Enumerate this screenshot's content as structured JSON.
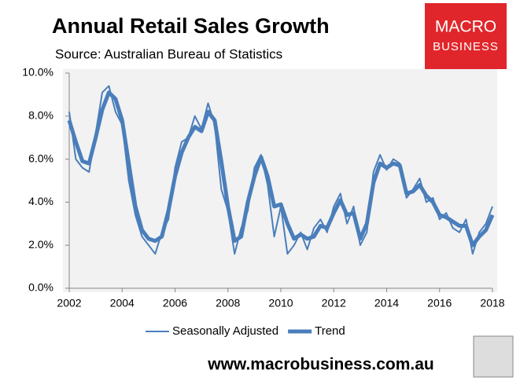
{
  "chart_data": {
    "type": "line",
    "title": "Annual Retail Sales Growth",
    "subtitle": "Source: Australian Bureau of Statistics",
    "logo": [
      "MACRO",
      "BUSINESS"
    ],
    "footer": "www.macrobusiness.com.au",
    "x": [
      2002,
      2002.25,
      2002.5,
      2002.75,
      2003,
      2003.25,
      2003.5,
      2003.75,
      2004,
      2004.25,
      2004.5,
      2004.75,
      2005,
      2005.25,
      2005.5,
      2005.75,
      2006,
      2006.25,
      2006.5,
      2006.75,
      2007,
      2007.25,
      2007.5,
      2007.75,
      2008,
      2008.25,
      2008.5,
      2008.75,
      2009,
      2009.25,
      2009.5,
      2009.75,
      2010,
      2010.25,
      2010.5,
      2010.75,
      2011,
      2011.25,
      2011.5,
      2011.75,
      2012,
      2012.25,
      2012.5,
      2012.75,
      2013,
      2013.25,
      2013.5,
      2013.75,
      2014,
      2014.25,
      2014.5,
      2014.75,
      2015,
      2015.25,
      2015.5,
      2015.75,
      2016,
      2016.25,
      2016.5,
      2016.75,
      2017,
      2017.25,
      2017.5,
      2017.75,
      2018
    ],
    "series": [
      {
        "name": "Seasonally Adjusted",
        "color": "#4a7ebb",
        "width": 2,
        "values": [
          8.2,
          6.0,
          5.6,
          5.4,
          7.2,
          9.1,
          9.4,
          8.2,
          7.6,
          5.0,
          3.4,
          2.4,
          2.0,
          1.6,
          2.6,
          3.2,
          5.6,
          6.8,
          7.0,
          8.0,
          7.4,
          8.6,
          7.6,
          4.6,
          3.6,
          1.6,
          2.8,
          3.6,
          5.6,
          6.2,
          4.8,
          2.4,
          3.8,
          1.6,
          2.0,
          2.6,
          1.8,
          2.8,
          3.2,
          2.6,
          3.8,
          4.4,
          3.0,
          3.8,
          2.0,
          2.6,
          5.4,
          6.2,
          5.5,
          6.0,
          5.8,
          4.2,
          4.6,
          5.1,
          4.0,
          4.2,
          3.2,
          3.5,
          2.8,
          2.6,
          3.2,
          1.6,
          2.6,
          3.0,
          3.8
        ]
      },
      {
        "name": "Trend",
        "color": "#4a7ebb",
        "width": 5,
        "values": [
          7.8,
          6.8,
          5.9,
          5.8,
          7.0,
          8.3,
          9.1,
          8.8,
          7.8,
          5.8,
          3.8,
          2.7,
          2.3,
          2.2,
          2.4,
          3.6,
          5.2,
          6.3,
          7.0,
          7.5,
          7.3,
          8.2,
          7.8,
          5.9,
          3.8,
          2.2,
          2.4,
          4.0,
          5.2,
          6.1,
          5.2,
          3.8,
          3.9,
          3.0,
          2.3,
          2.5,
          2.3,
          2.4,
          2.9,
          2.8,
          3.5,
          4.1,
          3.4,
          3.5,
          2.3,
          3.0,
          4.9,
          5.8,
          5.6,
          5.8,
          5.7,
          4.4,
          4.5,
          4.8,
          4.3,
          4.0,
          3.4,
          3.3,
          3.1,
          2.9,
          2.9,
          2.0,
          2.4,
          2.7,
          3.4
        ]
      }
    ],
    "xlim": [
      2002,
      2018
    ],
    "xticks": [
      2002,
      2004,
      2006,
      2008,
      2010,
      2012,
      2014,
      2016,
      2018
    ],
    "ylim": [
      0,
      10
    ],
    "yticks": [
      {
        "value": 0,
        "label": "0.0%"
      },
      {
        "value": 2,
        "label": "2.0%"
      },
      {
        "value": 4,
        "label": "4.0%"
      },
      {
        "value": 6,
        "label": "6.0%"
      },
      {
        "value": 8,
        "label": "8.0%"
      },
      {
        "value": 10,
        "label": "10.0%"
      }
    ],
    "legend": "bottom"
  }
}
